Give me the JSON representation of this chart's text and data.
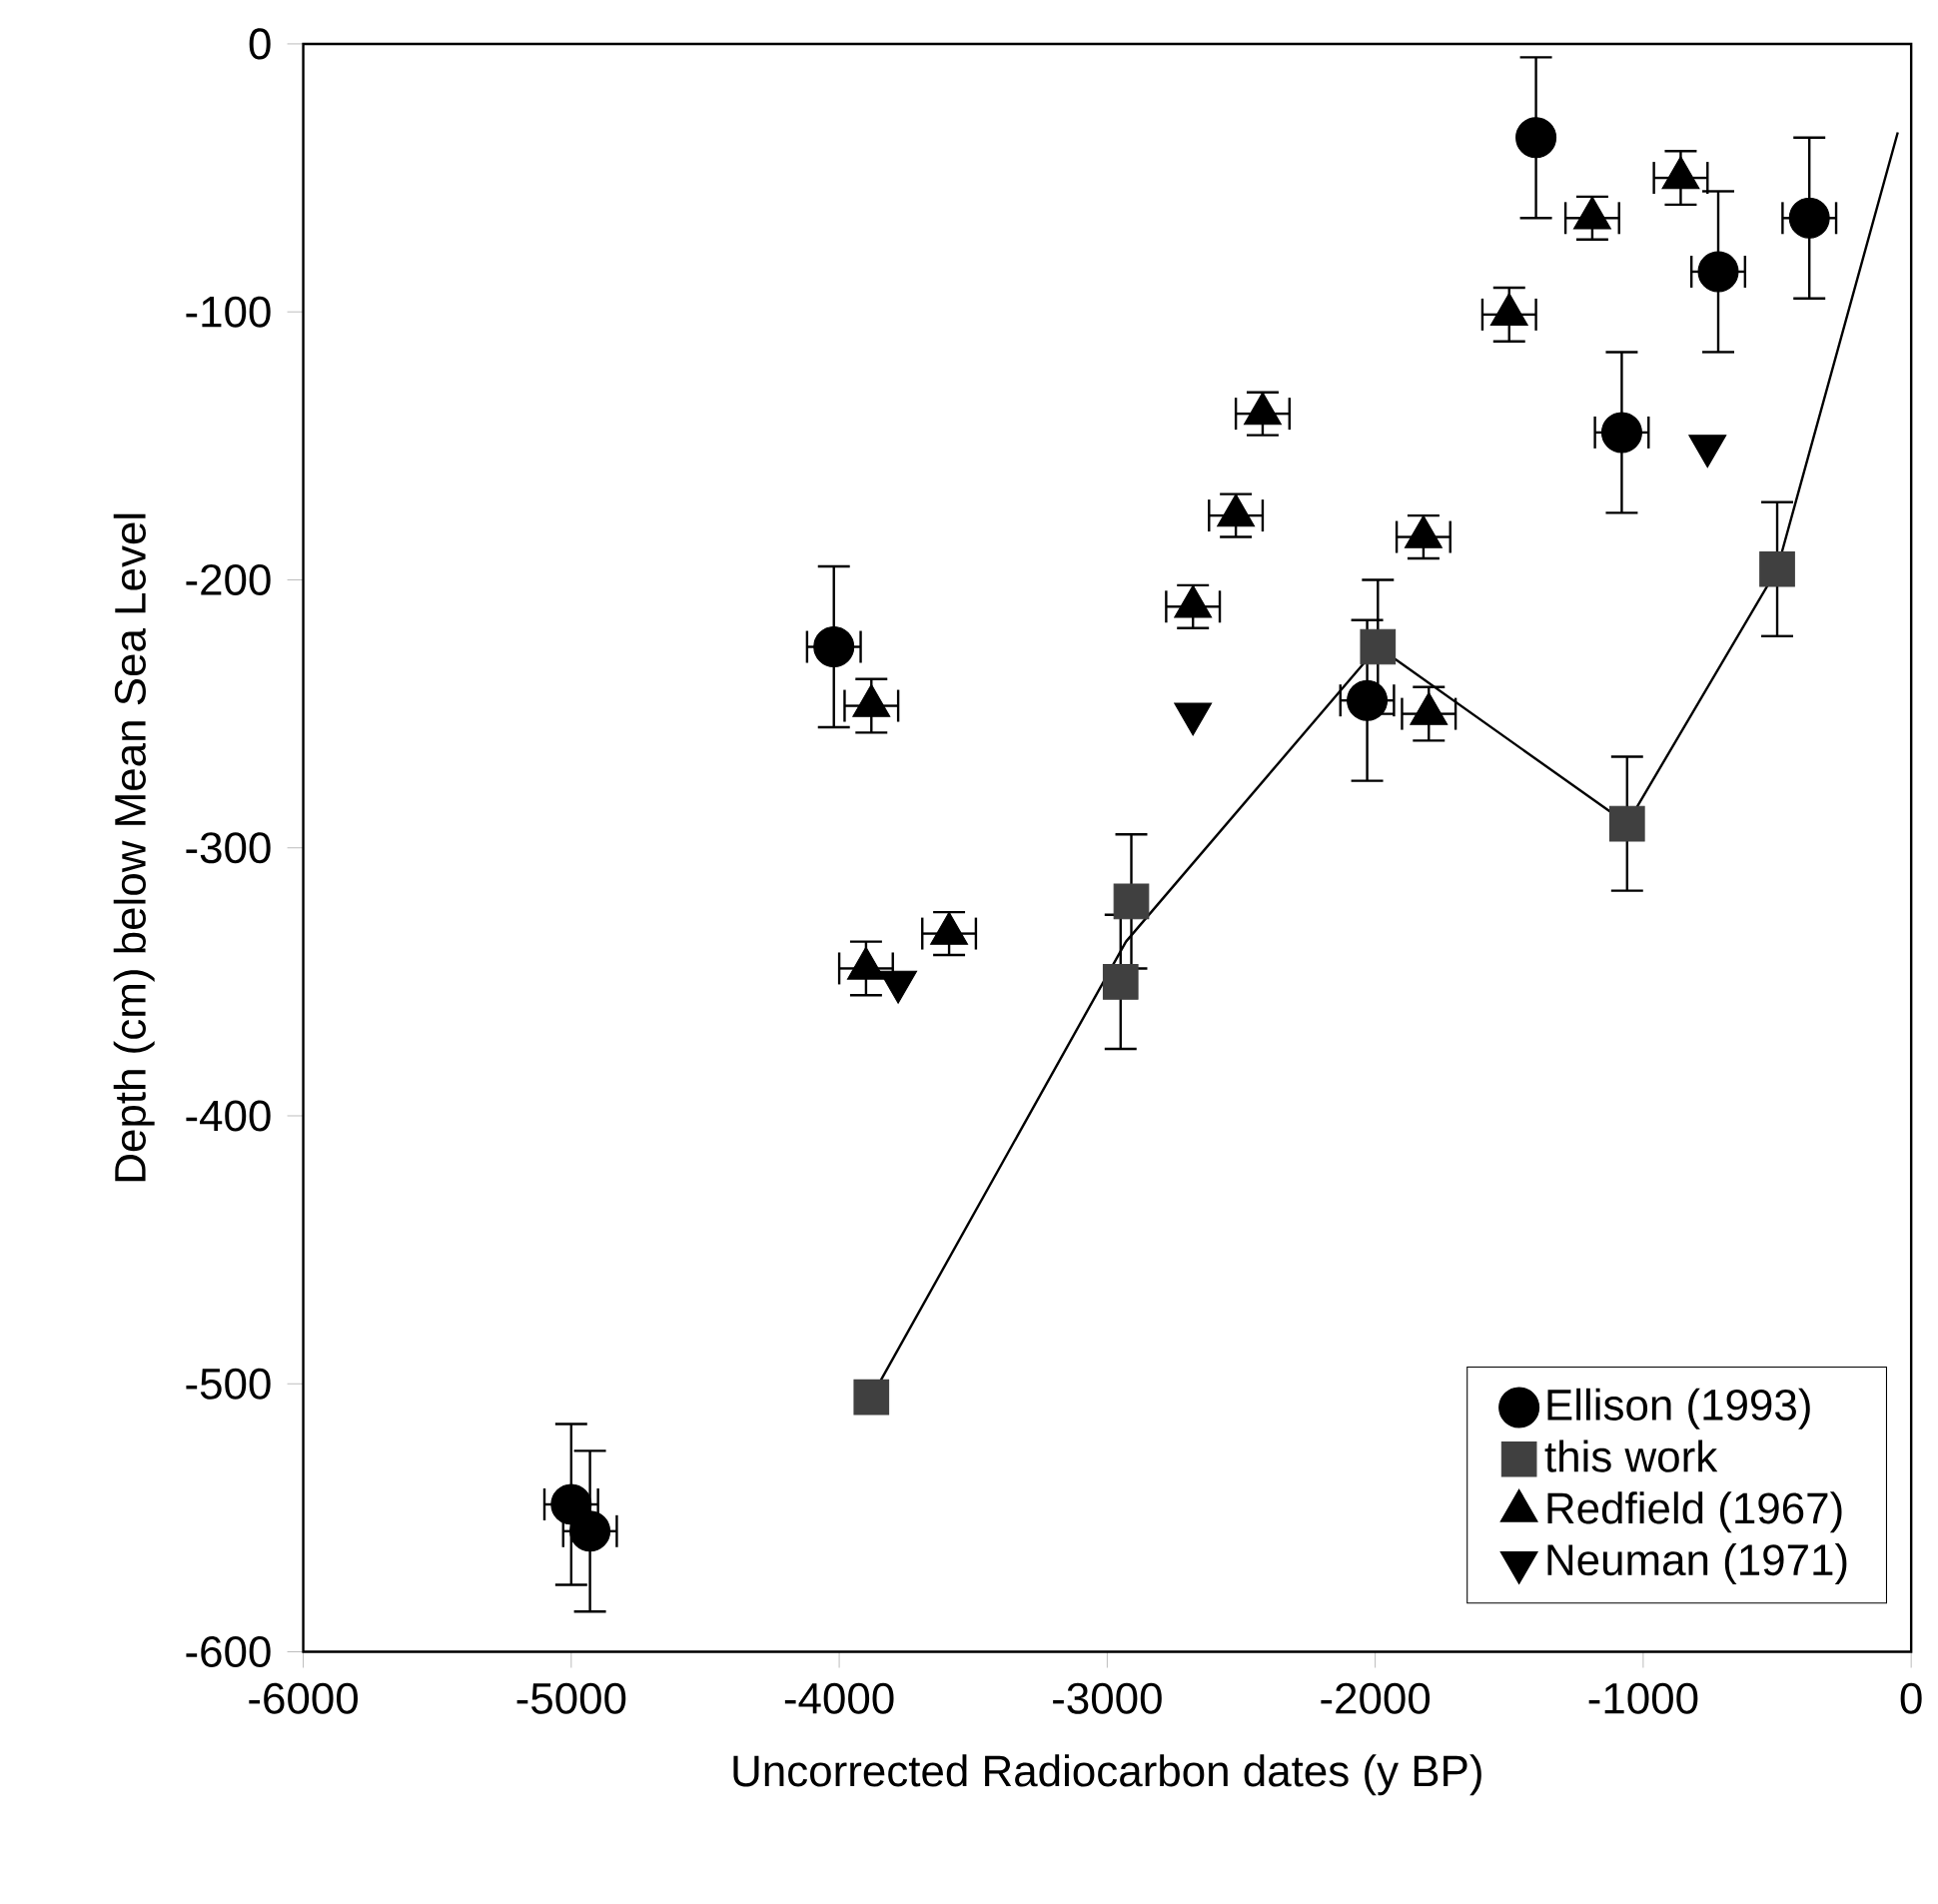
{
  "chart_data": {
    "type": "scatter",
    "xlabel": "Uncorrected Radiocarbon dates (y BP)",
    "ylabel": "Depth (cm) below Mean Sea Level",
    "xlim": [
      -6000,
      0
    ],
    "ylim": [
      -600,
      0
    ],
    "xticks": [
      -6000,
      -5000,
      -4000,
      -3000,
      -2000,
      -1000,
      0
    ],
    "yticks": [
      -600,
      -500,
      -400,
      -300,
      -200,
      -100,
      0
    ],
    "grid": false,
    "legend": "bottom right",
    "series": [
      {
        "name": "Ellison (1993)",
        "marker": "circle",
        "color": "#000000",
        "x": [
          -5000,
          -4930,
          -4020,
          -2030,
          -1400,
          -1080,
          -720,
          -380
        ],
        "values": [
          -545,
          -555,
          -225,
          -245,
          -35,
          -145,
          -85,
          -65
        ],
        "errors": [
          30,
          30,
          30,
          30,
          30,
          30,
          30,
          30
        ],
        "xerrors": [
          100,
          100,
          100,
          100,
          null,
          100,
          100,
          100
        ]
      },
      {
        "name": "this work",
        "marker": "square",
        "color": "#404040",
        "x": [
          -3880,
          -2950,
          -2910,
          -1990,
          -1060,
          -500
        ],
        "values": [
          -505,
          -350,
          -320,
          -225,
          -291,
          -196
        ],
        "errors": [
          null,
          25,
          25,
          25,
          25,
          25
        ]
      },
      {
        "name": "Redfield (1967)",
        "marker": "triangle",
        "color": "#000000",
        "x": [
          -3900,
          -3880,
          -3590,
          -2680,
          -2520,
          -2420,
          -1820,
          -1800,
          -1500,
          -1190,
          -860
        ],
        "values": [
          -345,
          -247,
          -332,
          -210,
          -176,
          -138,
          -184,
          -250,
          -101,
          -65,
          -50
        ],
        "errors": [
          10,
          10,
          8,
          8,
          8,
          8,
          8,
          10,
          10,
          8,
          10
        ],
        "xerrors": [
          100,
          100,
          100,
          100,
          100,
          100,
          100,
          100,
          100,
          100,
          100
        ]
      },
      {
        "name": "Neuman (1971)",
        "marker": "triangle-down",
        "color": "#000000",
        "x": [
          -3780,
          -2680,
          -760
        ],
        "values": [
          -350,
          -250,
          -150
        ]
      },
      {
        "type": "line",
        "marker": "none",
        "color": "#000000",
        "x": [
          -3880,
          -2930,
          -1990,
          -1060,
          -500,
          -50
        ],
        "values": [
          -505,
          -335,
          -225,
          -291,
          -196,
          -33
        ]
      }
    ]
  }
}
